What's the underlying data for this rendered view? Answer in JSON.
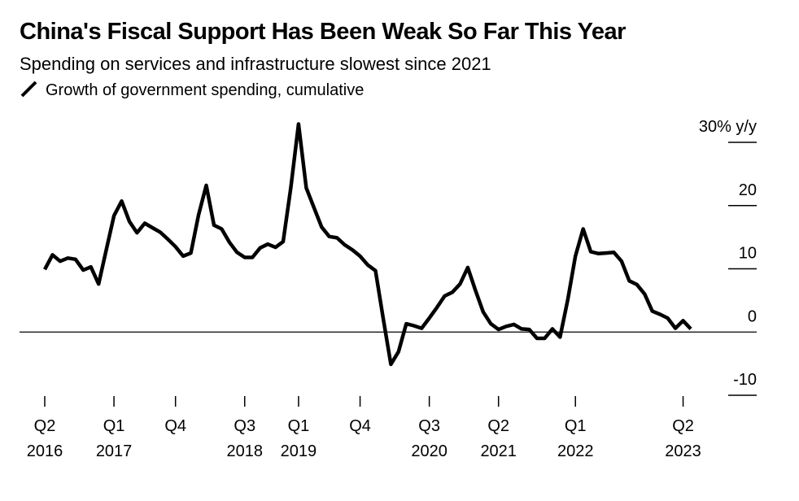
{
  "chart_data": {
    "type": "line",
    "title": "China's Fiscal Support Has Been Weak So Far This Year",
    "subtitle": "Spending on services and infrastructure slowest since 2021",
    "categories": [
      "Q2 2016",
      null,
      null,
      null,
      null,
      null,
      null,
      null,
      null,
      "Q1 2017",
      null,
      null,
      null,
      null,
      null,
      null,
      null,
      "Q4",
      null,
      null,
      null,
      null,
      null,
      null,
      null,
      null,
      "Q3 2018",
      null,
      null,
      null,
      null,
      null,
      null,
      "Q1 2019",
      null,
      null,
      null,
      null,
      null,
      null,
      null,
      "Q4",
      null,
      null,
      null,
      null,
      null,
      null,
      null,
      null,
      "Q3 2020",
      null,
      null,
      null,
      null,
      null,
      null,
      null,
      null,
      "Q2 2021",
      null,
      null,
      null,
      null,
      null,
      null,
      null,
      null,
      null,
      "Q1 2022",
      null,
      null,
      null,
      null,
      null,
      null,
      null,
      null,
      null,
      null,
      null,
      null,
      null,
      "Q2 2023",
      null
    ],
    "series": [
      {
        "name": "Growth of government spending, cumulative",
        "color": "#000000",
        "values": [
          9.9,
          12.2,
          11.2,
          11.7,
          11.5,
          9.8,
          10.3,
          7.6,
          13.0,
          18.4,
          20.7,
          17.5,
          15.7,
          17.2,
          16.5,
          15.8,
          14.7,
          13.5,
          12.0,
          12.5,
          18.5,
          23.2,
          16.9,
          16.3,
          14.2,
          12.6,
          11.8,
          11.8,
          13.3,
          13.9,
          13.4,
          14.3,
          22.9,
          32.9,
          22.8,
          19.7,
          16.6,
          15.1,
          14.9,
          13.8,
          13.0,
          12.0,
          10.6,
          9.7,
          2.2,
          -5.1,
          -3.1,
          1.3,
          1.0,
          0.6,
          2.2,
          3.9,
          5.7,
          6.3,
          7.6,
          10.2,
          6.6,
          3.2,
          1.3,
          0.4,
          0.9,
          1.2,
          0.5,
          0.4,
          -1.0,
          -1.0,
          0.5,
          -0.8,
          5.1,
          12.0,
          16.3,
          12.7,
          12.4,
          12.5,
          12.6,
          11.2,
          8.1,
          7.5,
          6.0,
          3.3,
          2.8,
          2.2,
          0.6,
          1.8,
          0.5
        ]
      }
    ],
    "ylim": [
      -10,
      30
    ],
    "yticks": [
      -10,
      0,
      10,
      20,
      {
        "value": 30,
        "label": "30% y/y"
      }
    ]
  }
}
